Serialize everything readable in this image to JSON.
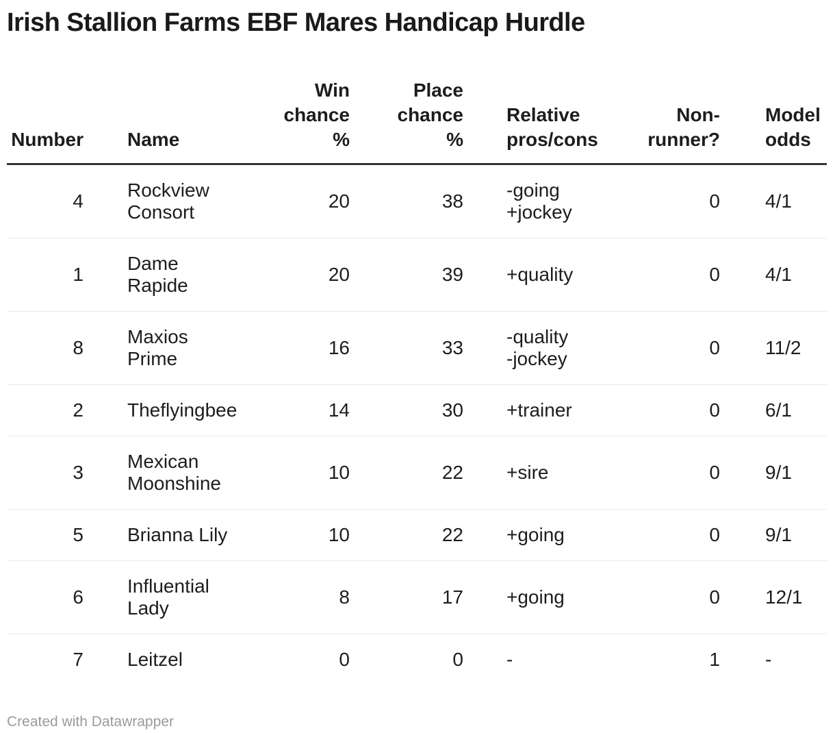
{
  "title": "Irish Stallion Farms EBF Mares Handicap Hurdle",
  "chart_data": {
    "type": "table",
    "title": "Irish Stallion Farms EBF Mares Handicap Hurdle",
    "columns": [
      "Number",
      "Name",
      "Win chance %",
      "Place chance %",
      "Relative pros/cons",
      "Non-runner?",
      "Model odds"
    ],
    "rows": [
      [
        4,
        "Rockview Consort",
        20,
        38,
        "-going +jockey",
        0,
        "4/1"
      ],
      [
        1,
        "Dame Rapide",
        20,
        39,
        "+quality",
        0,
        "4/1"
      ],
      [
        8,
        "Maxios Prime",
        16,
        33,
        "-quality -jockey",
        0,
        "11/2"
      ],
      [
        2,
        "Theflyingbee",
        14,
        30,
        "+trainer",
        0,
        "6/1"
      ],
      [
        3,
        "Mexican Moonshine",
        10,
        22,
        "+sire",
        0,
        "9/1"
      ],
      [
        5,
        "Brianna Lily",
        10,
        22,
        "+going",
        0,
        "9/1"
      ],
      [
        6,
        "Influential Lady",
        8,
        17,
        "+going",
        0,
        "12/1"
      ],
      [
        7,
        "Leitzel",
        0,
        0,
        "-",
        1,
        "-"
      ]
    ]
  },
  "table": {
    "columns": [
      {
        "label": "Number",
        "align": "right"
      },
      {
        "label": "Name",
        "align": "left"
      },
      {
        "label": "Win\nchance\n%",
        "align": "right"
      },
      {
        "label": "Place\nchance\n%",
        "align": "right"
      },
      {
        "label": "Relative\npros/cons",
        "align": "left"
      },
      {
        "label": "Non-\nrunner?",
        "align": "right"
      },
      {
        "label": "Model\nodds",
        "align": "left"
      }
    ],
    "rows": [
      {
        "number": "4",
        "name": "Rockview\nConsort",
        "win_chance_pct": "20",
        "place_chance_pct": "38",
        "pros_cons": "-going\n+jockey",
        "non_runner": "0",
        "model_odds": "4/1"
      },
      {
        "number": "1",
        "name": "Dame\nRapide",
        "win_chance_pct": "20",
        "place_chance_pct": "39",
        "pros_cons": "+quality",
        "non_runner": "0",
        "model_odds": "4/1"
      },
      {
        "number": "8",
        "name": "Maxios\nPrime",
        "win_chance_pct": "16",
        "place_chance_pct": "33",
        "pros_cons": "-quality\n-jockey",
        "non_runner": "0",
        "model_odds": "11/2"
      },
      {
        "number": "2",
        "name": "Theflyingbee",
        "win_chance_pct": "14",
        "place_chance_pct": "30",
        "pros_cons": "+trainer",
        "non_runner": "0",
        "model_odds": "6/1"
      },
      {
        "number": "3",
        "name": "Mexican\nMoonshine",
        "win_chance_pct": "10",
        "place_chance_pct": "22",
        "pros_cons": "+sire",
        "non_runner": "0",
        "model_odds": "9/1"
      },
      {
        "number": "5",
        "name": "Brianna Lily",
        "win_chance_pct": "10",
        "place_chance_pct": "22",
        "pros_cons": "+going",
        "non_runner": "0",
        "model_odds": "9/1"
      },
      {
        "number": "6",
        "name": "Influential\nLady",
        "win_chance_pct": "8",
        "place_chance_pct": "17",
        "pros_cons": "+going",
        "non_runner": "0",
        "model_odds": "12/1"
      },
      {
        "number": "7",
        "name": "Leitzel",
        "win_chance_pct": "0",
        "place_chance_pct": "0",
        "pros_cons": "-",
        "non_runner": "1",
        "model_odds": "-"
      }
    ]
  },
  "footer": {
    "attribution": "Created with Datawrapper"
  },
  "colors": {
    "background": "#ffffff",
    "title_text": "#1a1a1a",
    "body_text": "#1d1d1f",
    "header_rule": "#333333",
    "row_separator": "#e8e8e8",
    "attribution_text": "#9b9b9b"
  }
}
